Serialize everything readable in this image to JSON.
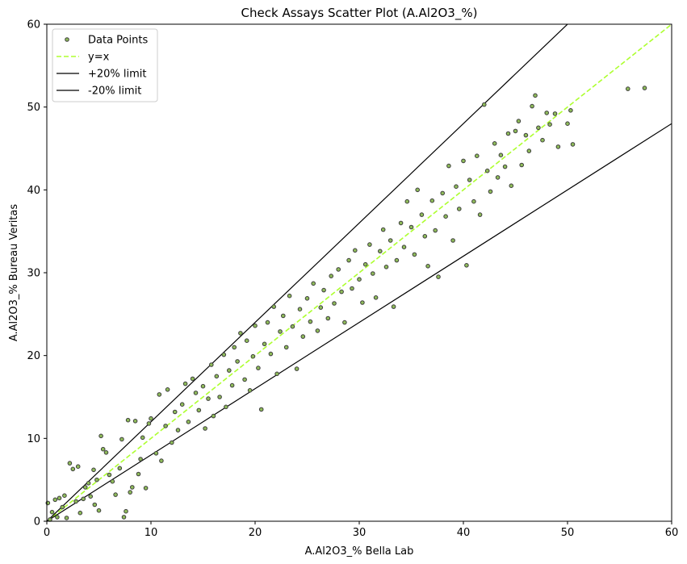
{
  "chart_data": {
    "type": "scatter",
    "title": "Check Assays Scatter Plot (A.Al2O3_%)",
    "xlabel": "A.Al2O3_% Bella Lab",
    "ylabel": "A.Al2O3_% Bureau Veritas",
    "xlim": [
      0,
      60
    ],
    "ylim": [
      0,
      60
    ],
    "x_ticks": [
      0,
      10,
      20,
      30,
      40,
      50,
      60
    ],
    "y_ticks": [
      0,
      10,
      20,
      30,
      40,
      50,
      60
    ],
    "grid": false,
    "legend_position": "top-left",
    "legend": [
      "Data Points",
      "y=x",
      "+20% limit",
      "-20% limit"
    ],
    "colors": {
      "marker_fill": "#8fbc5a",
      "marker_edge": "#3d3d3d",
      "identity_line": "#adff2f",
      "limit_lines": "#000000"
    },
    "lines": [
      {
        "name": "y=x",
        "slope": 1.0,
        "style": "dashed"
      },
      {
        "name": "+20% limit",
        "slope": 1.2,
        "style": "solid"
      },
      {
        "name": "-20% limit",
        "slope": 0.8,
        "style": "solid"
      }
    ],
    "series": [
      {
        "name": "Data Points",
        "points": [
          [
            0.1,
            2.2
          ],
          [
            0.3,
            0.2
          ],
          [
            0.5,
            1.1
          ],
          [
            0.8,
            2.6
          ],
          [
            1.0,
            0.5
          ],
          [
            1.2,
            2.8
          ],
          [
            1.5,
            1.7
          ],
          [
            1.7,
            3.1
          ],
          [
            1.9,
            0.4
          ],
          [
            2.2,
            7.0
          ],
          [
            2.5,
            6.3
          ],
          [
            2.8,
            2.4
          ],
          [
            3.0,
            6.6
          ],
          [
            3.2,
            1.0
          ],
          [
            3.5,
            2.7
          ],
          [
            3.7,
            4.1
          ],
          [
            4.0,
            4.6
          ],
          [
            4.2,
            3.0
          ],
          [
            4.5,
            6.2
          ],
          [
            4.6,
            2.0
          ],
          [
            4.8,
            5.0
          ],
          [
            5.0,
            1.3
          ],
          [
            5.2,
            10.3
          ],
          [
            5.4,
            8.7
          ],
          [
            5.7,
            8.3
          ],
          [
            6.0,
            5.6
          ],
          [
            6.3,
            4.8
          ],
          [
            6.6,
            3.2
          ],
          [
            7.0,
            6.4
          ],
          [
            7.2,
            9.9
          ],
          [
            7.4,
            0.5
          ],
          [
            7.6,
            1.2
          ],
          [
            7.8,
            12.2
          ],
          [
            8.0,
            3.5
          ],
          [
            8.2,
            4.1
          ],
          [
            8.5,
            12.1
          ],
          [
            8.8,
            5.7
          ],
          [
            9.0,
            7.5
          ],
          [
            9.2,
            10.1
          ],
          [
            9.5,
            4.0
          ],
          [
            9.8,
            11.8
          ],
          [
            10.0,
            12.4
          ],
          [
            10.5,
            8.2
          ],
          [
            10.8,
            15.3
          ],
          [
            11.0,
            7.3
          ],
          [
            11.4,
            11.5
          ],
          [
            11.6,
            15.9
          ],
          [
            12.0,
            9.5
          ],
          [
            12.3,
            13.2
          ],
          [
            12.6,
            11.0
          ],
          [
            13.0,
            14.1
          ],
          [
            13.3,
            16.6
          ],
          [
            13.6,
            12.0
          ],
          [
            14.0,
            17.2
          ],
          [
            14.3,
            15.5
          ],
          [
            14.6,
            13.4
          ],
          [
            15.0,
            16.3
          ],
          [
            15.2,
            11.2
          ],
          [
            15.5,
            14.8
          ],
          [
            15.8,
            18.9
          ],
          [
            16.0,
            12.7
          ],
          [
            16.3,
            17.5
          ],
          [
            16.6,
            15.0
          ],
          [
            17.0,
            20.1
          ],
          [
            17.2,
            13.8
          ],
          [
            17.5,
            18.2
          ],
          [
            17.8,
            16.4
          ],
          [
            18.0,
            21.0
          ],
          [
            18.3,
            19.3
          ],
          [
            18.6,
            22.7
          ],
          [
            19.0,
            17.1
          ],
          [
            19.2,
            21.8
          ],
          [
            19.5,
            15.8
          ],
          [
            19.8,
            19.9
          ],
          [
            20.0,
            23.6
          ],
          [
            20.3,
            18.5
          ],
          [
            20.6,
            13.5
          ],
          [
            20.9,
            21.4
          ],
          [
            21.2,
            24.0
          ],
          [
            21.5,
            20.2
          ],
          [
            21.8,
            25.9
          ],
          [
            22.1,
            17.8
          ],
          [
            22.4,
            22.9
          ],
          [
            22.7,
            24.8
          ],
          [
            23.0,
            21.0
          ],
          [
            23.3,
            27.2
          ],
          [
            23.6,
            23.5
          ],
          [
            24.0,
            18.4
          ],
          [
            24.3,
            25.6
          ],
          [
            24.6,
            22.3
          ],
          [
            25.0,
            26.9
          ],
          [
            25.3,
            24.1
          ],
          [
            25.6,
            28.7
          ],
          [
            26.0,
            23.0
          ],
          [
            26.3,
            25.8
          ],
          [
            26.6,
            27.9
          ],
          [
            27.0,
            24.5
          ],
          [
            27.3,
            29.6
          ],
          [
            27.6,
            26.3
          ],
          [
            28.0,
            30.4
          ],
          [
            28.3,
            27.7
          ],
          [
            28.6,
            24.0
          ],
          [
            29.0,
            31.5
          ],
          [
            29.3,
            28.1
          ],
          [
            29.6,
            32.7
          ],
          [
            30.0,
            29.2
          ],
          [
            30.3,
            26.4
          ],
          [
            30.6,
            31.0
          ],
          [
            31.0,
            33.4
          ],
          [
            31.3,
            29.9
          ],
          [
            31.6,
            27.0
          ],
          [
            32.0,
            32.6
          ],
          [
            32.3,
            35.2
          ],
          [
            32.6,
            30.7
          ],
          [
            33.0,
            33.9
          ],
          [
            33.3,
            25.9
          ],
          [
            33.6,
            31.5
          ],
          [
            34.0,
            36.0
          ],
          [
            34.3,
            33.1
          ],
          [
            34.6,
            38.6
          ],
          [
            35.0,
            35.5
          ],
          [
            35.3,
            32.2
          ],
          [
            35.6,
            40.0
          ],
          [
            36.0,
            37.0
          ],
          [
            36.3,
            34.4
          ],
          [
            36.6,
            30.8
          ],
          [
            37.0,
            38.7
          ],
          [
            37.3,
            35.1
          ],
          [
            37.6,
            29.5
          ],
          [
            38.0,
            39.6
          ],
          [
            38.3,
            36.8
          ],
          [
            38.6,
            42.9
          ],
          [
            39.0,
            33.9
          ],
          [
            39.3,
            40.4
          ],
          [
            39.6,
            37.7
          ],
          [
            40.0,
            43.5
          ],
          [
            40.3,
            30.9
          ],
          [
            40.6,
            41.2
          ],
          [
            41.0,
            38.6
          ],
          [
            41.3,
            44.1
          ],
          [
            41.6,
            37.0
          ],
          [
            42.0,
            50.3
          ],
          [
            42.3,
            42.3
          ],
          [
            42.6,
            39.8
          ],
          [
            43.0,
            45.6
          ],
          [
            43.3,
            41.5
          ],
          [
            43.6,
            44.2
          ],
          [
            44.0,
            42.8
          ],
          [
            44.3,
            46.8
          ],
          [
            44.6,
            40.5
          ],
          [
            45.0,
            47.1
          ],
          [
            45.3,
            48.3
          ],
          [
            45.6,
            43.0
          ],
          [
            46.0,
            46.6
          ],
          [
            46.3,
            44.7
          ],
          [
            46.6,
            50.1
          ],
          [
            46.9,
            51.4
          ],
          [
            47.2,
            47.5
          ],
          [
            47.6,
            46.0
          ],
          [
            48.0,
            49.3
          ],
          [
            48.3,
            47.9
          ],
          [
            48.8,
            49.2
          ],
          [
            49.1,
            45.2
          ],
          [
            50.0,
            48.0
          ],
          [
            50.3,
            49.6
          ],
          [
            50.5,
            45.5
          ],
          [
            55.8,
            52.2
          ],
          [
            57.4,
            52.3
          ]
        ]
      }
    ]
  }
}
